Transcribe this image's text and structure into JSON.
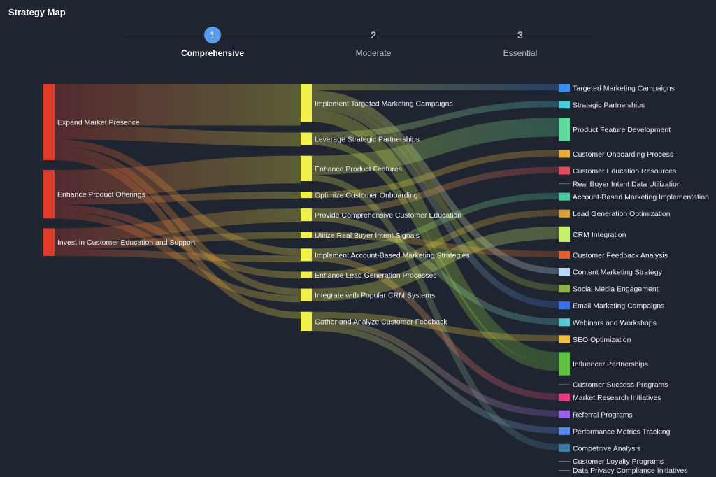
{
  "app_title": "Strategy Map",
  "steps": [
    {
      "number": "1",
      "label": "Comprehensive",
      "active": true
    },
    {
      "number": "2",
      "label": "Moderate",
      "active": false
    },
    {
      "number": "3",
      "label": "Essential",
      "active": false
    }
  ],
  "sankey": {
    "level1": [
      {
        "id": "a",
        "label": "Expand Market Presence",
        "color": "#e03a2a"
      },
      {
        "id": "b",
        "label": "Enhance Product Offerings",
        "color": "#e03a2a"
      },
      {
        "id": "c",
        "label": "Invest in Customer Education and Support",
        "color": "#e03a2a"
      }
    ],
    "level2": [
      {
        "id": "m1",
        "label": "Implement Targeted Marketing Campaigns",
        "color": "#f4f04a"
      },
      {
        "id": "m2",
        "label": "Leverage Strategic Partnerships",
        "color": "#f4f04a"
      },
      {
        "id": "m3",
        "label": "Enhance Product Features",
        "color": "#f4f04a"
      },
      {
        "id": "m4",
        "label": "Optimize Customer Onboarding",
        "color": "#f4f04a"
      },
      {
        "id": "m5",
        "label": "Provide Comprehensive Customer Education",
        "color": "#f4f04a"
      },
      {
        "id": "m6",
        "label": "Utilize Real Buyer Intent Signals",
        "color": "#f4f04a"
      },
      {
        "id": "m7",
        "label": "Implement Account-Based Marketing Strategies",
        "color": "#f4f04a"
      },
      {
        "id": "m8",
        "label": "Enhance Lead Generation Processes",
        "color": "#f4f04a"
      },
      {
        "id": "m9",
        "label": "Integrate with Popular CRM Systems",
        "color": "#f4f04a"
      },
      {
        "id": "m10",
        "label": "Gather and Analyze Customer Feedback",
        "color": "#f4f04a"
      }
    ],
    "level3": [
      {
        "id": "e1",
        "label": "Targeted Marketing Campaigns",
        "color": "#3a8de8"
      },
      {
        "id": "e2",
        "label": "Strategic Partnerships",
        "color": "#49c8d8"
      },
      {
        "id": "e3",
        "label": "Product Feature Development",
        "color": "#5cd89a"
      },
      {
        "id": "e4",
        "label": "Customer Onboarding Process",
        "color": "#e8a838"
      },
      {
        "id": "e5",
        "label": "Customer Education Resources",
        "color": "#e04a5a"
      },
      {
        "id": "e6",
        "label": "Real Buyer Intent Data Utilization",
        "color": "#c0c0c0"
      },
      {
        "id": "e7",
        "label": "Account-Based Marketing Implementation",
        "color": "#4ac8a0"
      },
      {
        "id": "e8",
        "label": "Lead Generation Optimization",
        "color": "#d8a038"
      },
      {
        "id": "e9",
        "label": "CRM Integration",
        "color": "#c8f070"
      },
      {
        "id": "e10",
        "label": "Customer Feedback Analysis",
        "color": "#e0602a"
      },
      {
        "id": "e11",
        "label": "Content Marketing Strategy",
        "color": "#b8d8f8"
      },
      {
        "id": "e12",
        "label": "Social Media Engagement",
        "color": "#90b040"
      },
      {
        "id": "e13",
        "label": "Email Marketing Campaigns",
        "color": "#3a70e8"
      },
      {
        "id": "e14",
        "label": "Webinars and Workshops",
        "color": "#58c8d0"
      },
      {
        "id": "e15",
        "label": "SEO Optimization",
        "color": "#f0c040"
      },
      {
        "id": "e16",
        "label": "Influencer Partnerships",
        "color": "#60c040"
      },
      {
        "id": "e17",
        "label": "Customer Success Programs",
        "color": "#c0c0c0"
      },
      {
        "id": "e18",
        "label": "Market Research Initiatives",
        "color": "#e83a80"
      },
      {
        "id": "e19",
        "label": "Referral Programs",
        "color": "#9a60e8"
      },
      {
        "id": "e20",
        "label": "Performance Metrics Tracking",
        "color": "#5a8ae8"
      },
      {
        "id": "e21",
        "label": "Competitive Analysis",
        "color": "#3a7aa0"
      },
      {
        "id": "e22",
        "label": "Customer Loyalty Programs",
        "color": "#c0c0c0"
      },
      {
        "id": "e23",
        "label": "Data Privacy Compliance Initiatives",
        "color": "#c0c0c0"
      }
    ],
    "links": [
      {
        "source": "a",
        "target": "m1",
        "value": 6
      },
      {
        "source": "a",
        "target": "m2",
        "value": 2
      },
      {
        "source": "a",
        "target": "m7",
        "value": 1
      },
      {
        "source": "a",
        "target": "m9",
        "value": 1
      },
      {
        "source": "a",
        "target": "m10",
        "value": 1
      },
      {
        "source": "b",
        "target": "m3",
        "value": 4
      },
      {
        "source": "b",
        "target": "m4",
        "value": 1
      },
      {
        "source": "b",
        "target": "m8",
        "value": 1
      },
      {
        "source": "b",
        "target": "m9",
        "value": 1
      },
      {
        "source": "c",
        "target": "m5",
        "value": 2
      },
      {
        "source": "c",
        "target": "m6",
        "value": 1
      },
      {
        "source": "c",
        "target": "m7",
        "value": 1
      },
      {
        "source": "m1",
        "target": "e1",
        "value": 1
      },
      {
        "source": "m1",
        "target": "e11",
        "value": 1
      },
      {
        "source": "m1",
        "target": "e13",
        "value": 1
      },
      {
        "source": "m1",
        "target": "e16",
        "value": 2
      },
      {
        "source": "m1",
        "target": "e12",
        "value": 1
      },
      {
        "source": "m2",
        "target": "e2",
        "value": 1
      },
      {
        "source": "m2",
        "target": "e16",
        "value": 1
      },
      {
        "source": "m3",
        "target": "e3",
        "value": 3
      },
      {
        "source": "m3",
        "target": "e21",
        "value": 1
      },
      {
        "source": "m4",
        "target": "e4",
        "value": 1
      },
      {
        "source": "m5",
        "target": "e5",
        "value": 1
      },
      {
        "source": "m5",
        "target": "e14",
        "value": 1
      },
      {
        "source": "m6",
        "target": "e10",
        "value": 1
      },
      {
        "source": "m7",
        "target": "e7",
        "value": 1
      },
      {
        "source": "m7",
        "target": "e18",
        "value": 1
      },
      {
        "source": "m8",
        "target": "e8",
        "value": 1
      },
      {
        "source": "m9",
        "target": "e9",
        "value": 2
      },
      {
        "source": "m10",
        "target": "e15",
        "value": 1
      },
      {
        "source": "m10",
        "target": "e19",
        "value": 1
      },
      {
        "source": "m10",
        "target": "e20",
        "value": 1
      }
    ]
  }
}
